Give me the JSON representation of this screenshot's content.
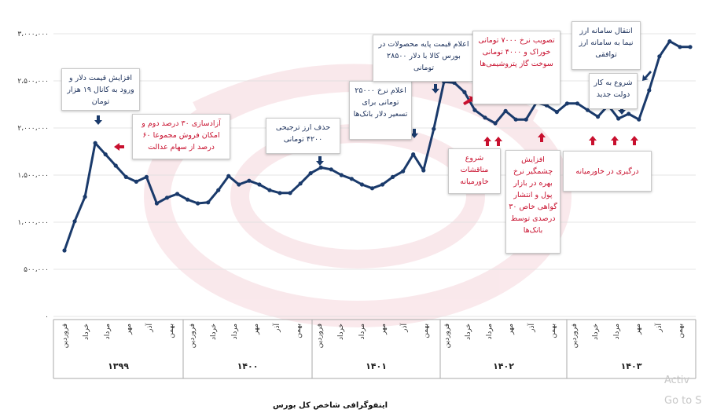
{
  "title": "اینفوگرافی شاخص کل بورس",
  "watermark": {
    "line1": "Activ",
    "line2": "Go to S"
  },
  "colors": {
    "line": "#1a3a6b",
    "red": "#c8102e",
    "grid": "#dddddd"
  },
  "chart_data": {
    "type": "line",
    "title": "اینفوگرافی شاخص کل بورس",
    "y_ticks": [
      {
        "v": 3000000,
        "label": "۳،۰۰۰،۰۰۰"
      },
      {
        "v": 2500000,
        "label": "۲،۵۰۰،۰۰۰"
      },
      {
        "v": 2000000,
        "label": "۲،۰۰۰،۰۰۰"
      },
      {
        "v": 1500000,
        "label": "۱،۵۰۰،۰۰۰"
      },
      {
        "v": 1000000,
        "label": "۱،۰۰۰،۰۰۰"
      },
      {
        "v": 500000,
        "label": "۵۰۰،۰۰۰"
      },
      {
        "v": 0,
        "label": "۰"
      }
    ],
    "ylim": [
      0,
      3000000
    ],
    "x_labels": [
      "فروردین",
      "خرداد",
      "مرداد",
      "مهر",
      "آذر",
      "بهمن",
      "فروردین",
      "خرداد",
      "مرداد",
      "مهر",
      "آذر",
      "بهمن",
      "فروردین",
      "خرداد",
      "مرداد",
      "مهر",
      "آذر",
      "بهمن",
      "فروردین",
      "خرداد",
      "مرداد",
      "مهر",
      "آذر",
      "بهمن",
      "فروردین",
      "خرداد",
      "مرداد",
      "مهر",
      "آذر",
      "بهمن"
    ],
    "years": [
      "۱۳۹۹",
      "۱۴۰۰",
      "۱۴۰۱",
      "۱۴۰۲",
      "۱۴۰۳"
    ],
    "values": [
      700000,
      1010000,
      1270000,
      1840000,
      1720000,
      1600000,
      1480000,
      1430000,
      1480000,
      1200000,
      1260000,
      1300000,
      1240000,
      1200000,
      1210000,
      1340000,
      1490000,
      1400000,
      1440000,
      1400000,
      1340000,
      1310000,
      1310000,
      1410000,
      1520000,
      1580000,
      1560000,
      1500000,
      1460000,
      1400000,
      1360000,
      1400000,
      1480000,
      1540000,
      1720000,
      1550000,
      1990000,
      2490000,
      2480000,
      2380000,
      2190000,
      2110000,
      2050000,
      2180000,
      2090000,
      2090000,
      2270000,
      2240000,
      2170000,
      2260000,
      2260000,
      2190000,
      2120000,
      2240000,
      2100000,
      2150000,
      2090000,
      2400000,
      2760000,
      2920000,
      2860000,
      2860000
    ],
    "annotations": [
      {
        "color": "blue",
        "text": "افزایش قیمت دلار و ورود به کانال ۱۹ هزار تومان"
      },
      {
        "color": "red",
        "text": "آزادسازی ۳۰ درصد دوم و امکان فروش مجموعا ۶۰ درصد از سهام عدالت"
      },
      {
        "color": "blue",
        "text": "حذف ارز ترجیحی ۴۲۰۰ تومانی"
      },
      {
        "color": "blue",
        "text": "اعلام نرخ ۲۵۰۰۰ تومانی برای تسعیر دلار بانک‌ها"
      },
      {
        "color": "blue",
        "text": "اعلام قیمت پایه محصولات در بورس کالا با دلار ۲۸۵۰۰ تومانی"
      },
      {
        "color": "red",
        "text": "تصویب نرخ ۷۰۰۰ تومانی خوراک و ۴۰۰۰ تومانی سوخت گاز پتروشیمی‌ها"
      },
      {
        "color": "red",
        "text": "شروع مناقشات خاورمیانه"
      },
      {
        "color": "red",
        "text": "افزایش چشمگیر نرخ بهره در بازار پول و انتشار گواهی خاص ۳۰ درصدی توسط بانک‌ها"
      },
      {
        "color": "blue",
        "text": "شروع به کار دولت جدید"
      },
      {
        "color": "blue",
        "text": "انتقال سامانه ارز نیما به سامانه ارز توافقی"
      },
      {
        "color": "red",
        "text": "درگیری در خاورمیانه"
      }
    ]
  }
}
